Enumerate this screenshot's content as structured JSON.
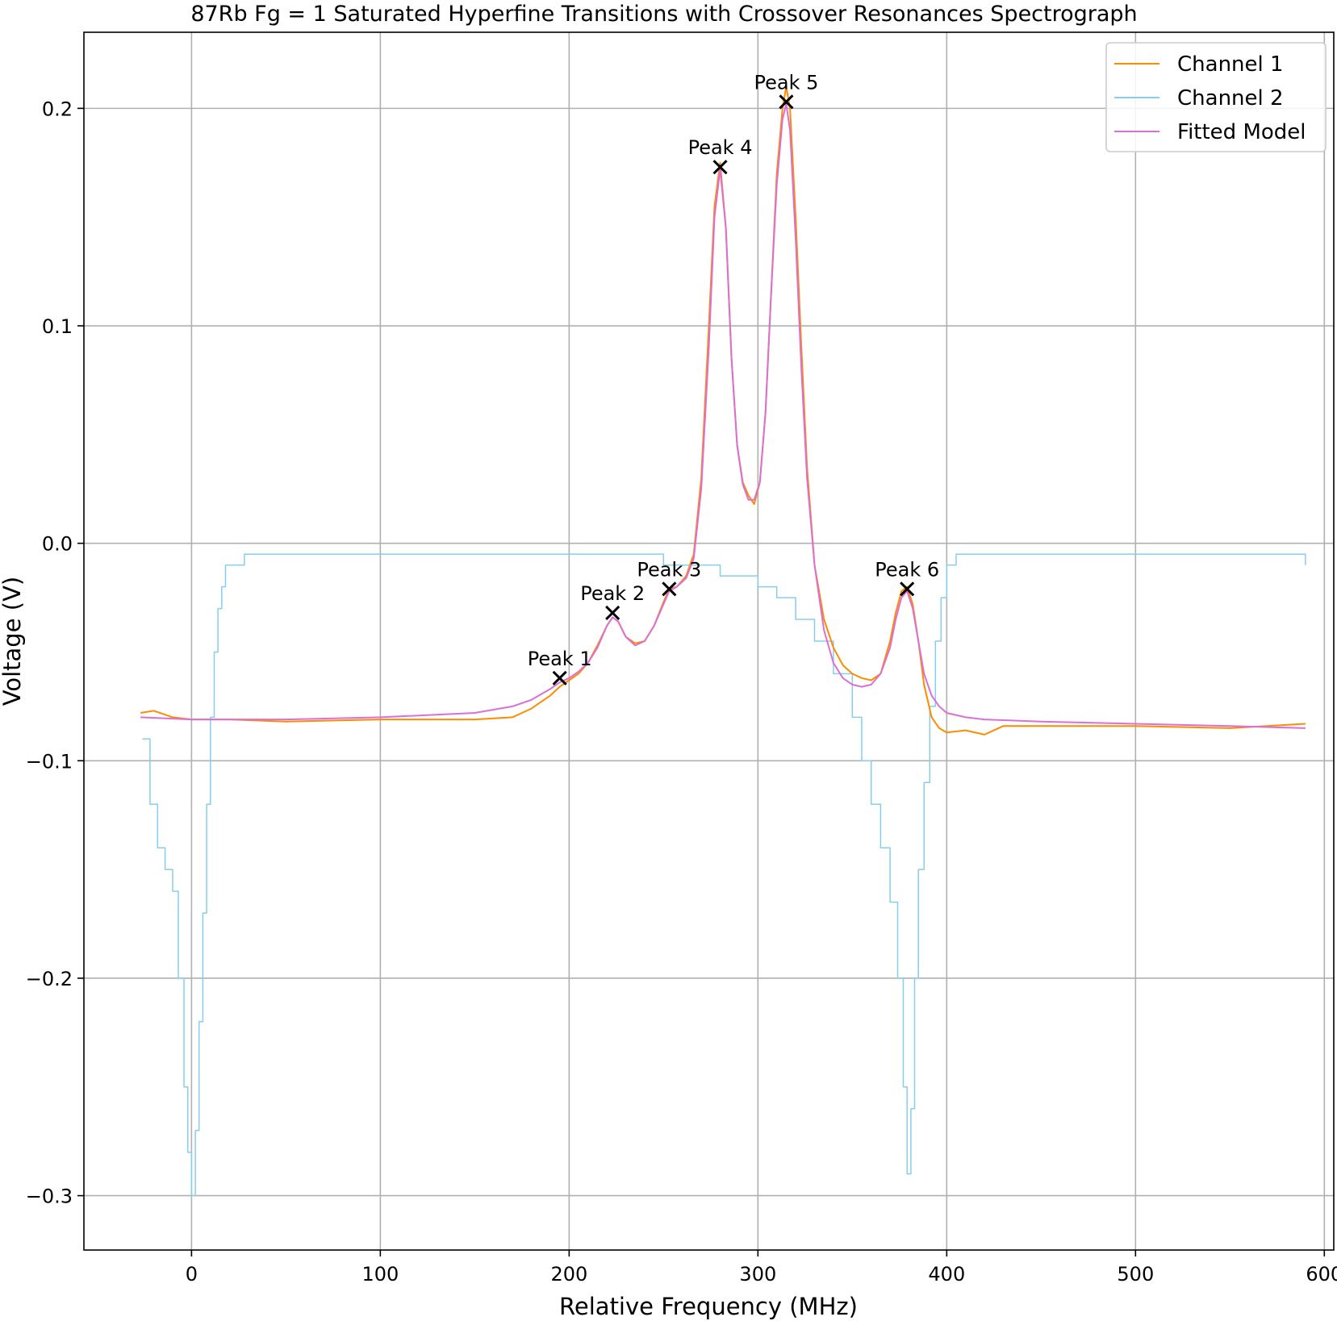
{
  "chart_data": {
    "type": "line",
    "title": "87Rb Fg = 1 Saturated Hyperfine Transitions with Crossover Resonances Spectrograph",
    "xlabel": "Relative Frequency (MHz)",
    "ylabel": "Voltage (V)",
    "xlim": [
      -57,
      605
    ],
    "ylim": [
      -0.325,
      0.235
    ],
    "xticks": [
      0,
      100,
      200,
      300,
      400,
      500,
      600
    ],
    "xtick_labels": [
      "0",
      "100",
      "200",
      "300",
      "400",
      "500",
      "600"
    ],
    "yticks": [
      -0.3,
      -0.2,
      -0.1,
      0.0,
      0.1,
      0.2
    ],
    "ytick_labels": [
      "−0.3",
      "−0.2",
      "−0.1",
      "0.0",
      "0.1",
      "0.2"
    ],
    "grid": true,
    "legend_position": "top-right",
    "series": [
      {
        "name": "Channel 1",
        "color": "#ff8c00",
        "x": [
          -27,
          -20,
          -10,
          0,
          20,
          50,
          100,
          150,
          170,
          180,
          190,
          195,
          200,
          205,
          210,
          215,
          220,
          223,
          226,
          230,
          235,
          240,
          245,
          250,
          253,
          257,
          262,
          266,
          270,
          274,
          277,
          280,
          283,
          286,
          289,
          292,
          295,
          298,
          301,
          304,
          307,
          310,
          313,
          315,
          317,
          320,
          323,
          326,
          330,
          335,
          340,
          345,
          350,
          355,
          360,
          365,
          370,
          373,
          376,
          379,
          382,
          385,
          388,
          392,
          396,
          400,
          410,
          420,
          430,
          450,
          500,
          550,
          590
        ],
        "y": [
          -0.078,
          -0.077,
          -0.08,
          -0.081,
          -0.081,
          -0.082,
          -0.081,
          -0.081,
          -0.08,
          -0.076,
          -0.07,
          -0.066,
          -0.063,
          -0.06,
          -0.055,
          -0.047,
          -0.038,
          -0.034,
          -0.036,
          -0.043,
          -0.046,
          -0.045,
          -0.038,
          -0.027,
          -0.021,
          -0.02,
          -0.015,
          -0.005,
          0.03,
          0.1,
          0.155,
          0.175,
          0.145,
          0.085,
          0.045,
          0.028,
          0.022,
          0.018,
          0.028,
          0.06,
          0.115,
          0.17,
          0.2,
          0.21,
          0.2,
          0.15,
          0.09,
          0.035,
          -0.01,
          -0.035,
          -0.048,
          -0.056,
          -0.06,
          -0.062,
          -0.063,
          -0.06,
          -0.045,
          -0.032,
          -0.022,
          -0.02,
          -0.028,
          -0.045,
          -0.065,
          -0.08,
          -0.085,
          -0.087,
          -0.086,
          -0.088,
          -0.084,
          -0.084,
          -0.084,
          -0.085,
          -0.083
        ]
      },
      {
        "name": "Channel 2",
        "color": "#87ceeb",
        "x": [
          -26,
          -22,
          -18,
          -14,
          -10,
          -7,
          -4,
          -2,
          0,
          2,
          4,
          6,
          8,
          10,
          12,
          14,
          16,
          18,
          22,
          28,
          35,
          60,
          100,
          150,
          200,
          250,
          280,
          290,
          300,
          310,
          320,
          330,
          340,
          350,
          355,
          360,
          365,
          370,
          374,
          377,
          379,
          381,
          383,
          385,
          388,
          391,
          394,
          397,
          400,
          405,
          420,
          500,
          560,
          590
        ],
        "y": [
          -0.09,
          -0.12,
          -0.14,
          -0.15,
          -0.16,
          -0.2,
          -0.25,
          -0.28,
          -0.3,
          -0.27,
          -0.22,
          -0.17,
          -0.12,
          -0.08,
          -0.05,
          -0.03,
          -0.02,
          -0.01,
          -0.01,
          -0.005,
          -0.005,
          -0.005,
          -0.005,
          -0.005,
          -0.005,
          -0.01,
          -0.015,
          -0.015,
          -0.02,
          -0.025,
          -0.035,
          -0.045,
          -0.06,
          -0.08,
          -0.1,
          -0.12,
          -0.14,
          -0.165,
          -0.2,
          -0.25,
          -0.29,
          -0.26,
          -0.2,
          -0.15,
          -0.11,
          -0.075,
          -0.045,
          -0.025,
          -0.01,
          -0.005,
          -0.005,
          -0.005,
          -0.005,
          -0.01
        ]
      },
      {
        "name": "Fitted Model",
        "color": "#da70d6",
        "x": [
          -27,
          0,
          50,
          100,
          150,
          170,
          180,
          190,
          195,
          200,
          205,
          210,
          215,
          220,
          223,
          226,
          230,
          235,
          240,
          245,
          250,
          253,
          257,
          262,
          266,
          270,
          274,
          277,
          280,
          283,
          286,
          289,
          292,
          295,
          298,
          301,
          304,
          307,
          310,
          313,
          315,
          317,
          320,
          323,
          326,
          330,
          335,
          340,
          345,
          350,
          355,
          360,
          365,
          370,
          373,
          376,
          379,
          382,
          385,
          388,
          392,
          396,
          400,
          410,
          420,
          450,
          500,
          550,
          590
        ],
        "y": [
          -0.08,
          -0.081,
          -0.081,
          -0.08,
          -0.078,
          -0.075,
          -0.072,
          -0.067,
          -0.064,
          -0.062,
          -0.059,
          -0.055,
          -0.048,
          -0.038,
          -0.034,
          -0.036,
          -0.043,
          -0.047,
          -0.045,
          -0.038,
          -0.028,
          -0.022,
          -0.02,
          -0.016,
          -0.007,
          0.025,
          0.09,
          0.15,
          0.172,
          0.145,
          0.085,
          0.045,
          0.027,
          0.02,
          0.02,
          0.028,
          0.06,
          0.115,
          0.165,
          0.195,
          0.202,
          0.19,
          0.14,
          0.08,
          0.03,
          -0.01,
          -0.04,
          -0.055,
          -0.062,
          -0.065,
          -0.066,
          -0.065,
          -0.06,
          -0.048,
          -0.035,
          -0.025,
          -0.022,
          -0.03,
          -0.045,
          -0.06,
          -0.07,
          -0.075,
          -0.078,
          -0.08,
          -0.081,
          -0.082,
          -0.083,
          -0.084,
          -0.085
        ]
      }
    ],
    "peaks": [
      {
        "label": "Peak 1",
        "x": 195,
        "y": -0.062
      },
      {
        "label": "Peak 2",
        "x": 223,
        "y": -0.032
      },
      {
        "label": "Peak 3",
        "x": 253,
        "y": -0.021
      },
      {
        "label": "Peak 4",
        "x": 280,
        "y": 0.173
      },
      {
        "label": "Peak 5",
        "x": 315,
        "y": 0.203
      },
      {
        "label": "Peak 6",
        "x": 379,
        "y": -0.021
      }
    ]
  }
}
